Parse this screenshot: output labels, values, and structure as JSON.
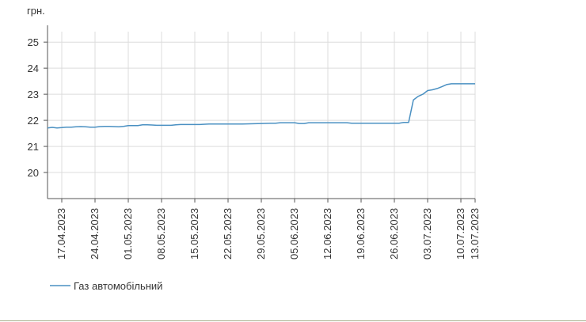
{
  "chart_data": {
    "type": "line",
    "title": "",
    "unit_label": "грн.",
    "xlabel": "",
    "ylabel": "",
    "ylim": [
      19,
      25.4
    ],
    "yticks": [
      "20",
      "21",
      "22",
      "23",
      "24",
      "25"
    ],
    "xtick_labels": [
      "17.04.2023",
      "24.04.2023",
      "01.05.2023",
      "08.05.2023",
      "15.05.2023",
      "22.05.2023",
      "29.05.2023",
      "05.06.2023",
      "12.06.2023",
      "19.06.2023",
      "26.06.2023",
      "03.07.2023",
      "10.07.2023",
      "13.07.2023"
    ],
    "grid": true,
    "legend_position": "bottom-left",
    "series": [
      {
        "name": "Газ автомобільний",
        "color": "#4a90c2",
        "points": [
          [
            "2023-04-14",
            21.71
          ],
          [
            "2023-04-15",
            21.73
          ],
          [
            "2023-04-16",
            21.71
          ],
          [
            "2023-04-17",
            21.72
          ],
          [
            "2023-04-18",
            21.74
          ],
          [
            "2023-04-19",
            21.74
          ],
          [
            "2023-04-20",
            21.75
          ],
          [
            "2023-04-21",
            21.76
          ],
          [
            "2023-04-22",
            21.75
          ],
          [
            "2023-04-23",
            21.74
          ],
          [
            "2023-04-24",
            21.74
          ],
          [
            "2023-04-25",
            21.76
          ],
          [
            "2023-04-26",
            21.77
          ],
          [
            "2023-04-27",
            21.77
          ],
          [
            "2023-04-28",
            21.76
          ],
          [
            "2023-04-29",
            21.75
          ],
          [
            "2023-04-30",
            21.77
          ],
          [
            "2023-05-01",
            21.8
          ],
          [
            "2023-05-02",
            21.8
          ],
          [
            "2023-05-03",
            21.8
          ],
          [
            "2023-05-04",
            21.83
          ],
          [
            "2023-05-05",
            21.83
          ],
          [
            "2023-05-06",
            21.82
          ],
          [
            "2023-05-07",
            21.81
          ],
          [
            "2023-05-08",
            21.81
          ],
          [
            "2023-05-09",
            21.81
          ],
          [
            "2023-05-10",
            21.81
          ],
          [
            "2023-05-11",
            21.83
          ],
          [
            "2023-05-12",
            21.84
          ],
          [
            "2023-05-15",
            21.84
          ],
          [
            "2023-05-16",
            21.84
          ],
          [
            "2023-05-18",
            21.86
          ],
          [
            "2023-05-22",
            21.86
          ],
          [
            "2023-05-25",
            21.86
          ],
          [
            "2023-05-29",
            21.88
          ],
          [
            "2023-05-31",
            21.89
          ],
          [
            "2023-06-01",
            21.89
          ],
          [
            "2023-06-02",
            21.91
          ],
          [
            "2023-06-03",
            21.91
          ],
          [
            "2023-06-05",
            21.91
          ],
          [
            "2023-06-06",
            21.88
          ],
          [
            "2023-06-07",
            21.88
          ],
          [
            "2023-06-08",
            21.91
          ],
          [
            "2023-06-12",
            21.91
          ],
          [
            "2023-06-16",
            21.91
          ],
          [
            "2023-06-17",
            21.89
          ],
          [
            "2023-06-19",
            21.89
          ],
          [
            "2023-06-23",
            21.89
          ],
          [
            "2023-06-27",
            21.89
          ],
          [
            "2023-06-28",
            21.92
          ],
          [
            "2023-06-29",
            21.92
          ],
          [
            "2023-06-30",
            22.78
          ],
          [
            "2023-07-01",
            22.92
          ],
          [
            "2023-07-02",
            23.0
          ],
          [
            "2023-07-03",
            23.14
          ],
          [
            "2023-07-04",
            23.17
          ],
          [
            "2023-07-05",
            23.22
          ],
          [
            "2023-07-06",
            23.29
          ],
          [
            "2023-07-07",
            23.37
          ],
          [
            "2023-07-08",
            23.4
          ],
          [
            "2023-07-09",
            23.4
          ],
          [
            "2023-07-10",
            23.4
          ],
          [
            "2023-07-11",
            23.4
          ],
          [
            "2023-07-12",
            23.4
          ],
          [
            "2023-07-13",
            23.4
          ]
        ]
      }
    ]
  }
}
